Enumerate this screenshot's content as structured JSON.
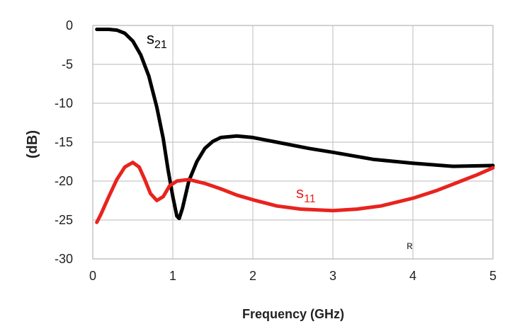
{
  "chart_data": {
    "type": "line",
    "title": "",
    "xlabel": "Frequency (GHz)",
    "ylabel": "(dB)",
    "xlim": [
      0,
      5
    ],
    "ylim": [
      -30,
      0
    ],
    "x_ticks": [
      0,
      1,
      2,
      3,
      4,
      5
    ],
    "y_ticks": [
      0,
      -5,
      -10,
      -15,
      -20,
      -25,
      -30
    ],
    "x_tick_labels": [
      "0",
      "1",
      "2",
      "3",
      "4",
      "5"
    ],
    "y_tick_labels": [
      "0",
      "-5",
      "-10",
      "-15",
      "-20",
      "-25",
      "-30"
    ],
    "grid": true,
    "series": [
      {
        "name": "s21",
        "label_main": "s",
        "label_sub": "21",
        "color": "#000000",
        "points": [
          [
            0.05,
            -0.5
          ],
          [
            0.2,
            -0.5
          ],
          [
            0.3,
            -0.6
          ],
          [
            0.4,
            -1.0
          ],
          [
            0.5,
            -2.0
          ],
          [
            0.6,
            -3.8
          ],
          [
            0.7,
            -6.5
          ],
          [
            0.8,
            -10.5
          ],
          [
            0.88,
            -14.5
          ],
          [
            0.94,
            -18.5
          ],
          [
            1.0,
            -22.0
          ],
          [
            1.05,
            -24.5
          ],
          [
            1.08,
            -24.8
          ],
          [
            1.12,
            -23.5
          ],
          [
            1.2,
            -20.0
          ],
          [
            1.3,
            -17.5
          ],
          [
            1.4,
            -15.8
          ],
          [
            1.5,
            -14.9
          ],
          [
            1.6,
            -14.4
          ],
          [
            1.8,
            -14.2
          ],
          [
            2.0,
            -14.4
          ],
          [
            2.3,
            -15.0
          ],
          [
            2.7,
            -15.8
          ],
          [
            3.0,
            -16.3
          ],
          [
            3.5,
            -17.2
          ],
          [
            4.0,
            -17.7
          ],
          [
            4.5,
            -18.1
          ],
          [
            5.0,
            -18.0
          ]
        ]
      },
      {
        "name": "s11",
        "label_main": "s",
        "label_sub": "11",
        "color": "#e8231e",
        "points": [
          [
            0.05,
            -25.3
          ],
          [
            0.1,
            -24.3
          ],
          [
            0.2,
            -22.0
          ],
          [
            0.3,
            -19.8
          ],
          [
            0.4,
            -18.2
          ],
          [
            0.5,
            -17.6
          ],
          [
            0.58,
            -18.2
          ],
          [
            0.65,
            -19.8
          ],
          [
            0.72,
            -21.6
          ],
          [
            0.8,
            -22.5
          ],
          [
            0.88,
            -22.0
          ],
          [
            0.96,
            -20.6
          ],
          [
            1.05,
            -20.0
          ],
          [
            1.2,
            -19.8
          ],
          [
            1.4,
            -20.3
          ],
          [
            1.6,
            -21.0
          ],
          [
            1.8,
            -21.8
          ],
          [
            2.0,
            -22.4
          ],
          [
            2.3,
            -23.2
          ],
          [
            2.6,
            -23.6
          ],
          [
            3.0,
            -23.8
          ],
          [
            3.3,
            -23.6
          ],
          [
            3.6,
            -23.2
          ],
          [
            4.0,
            -22.2
          ],
          [
            4.3,
            -21.2
          ],
          [
            4.6,
            -20.0
          ],
          [
            4.8,
            -19.2
          ],
          [
            5.0,
            -18.3
          ]
        ]
      }
    ],
    "annotations": [
      {
        "text": "ʀ"
      }
    ]
  }
}
